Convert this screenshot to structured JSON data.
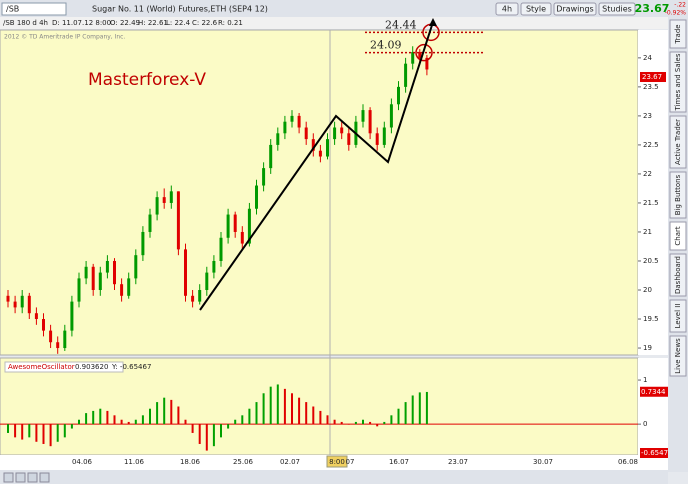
{
  "toolbar": {
    "symbol": "/SB",
    "description": "Sugar No. 11 (World) Futures,ETH (SEP4 12)",
    "buttons": [
      "4h",
      "Style",
      "Drawings",
      "Studies"
    ],
    "last": "23.67",
    "change": "-.22",
    "change_pct": "-0.92%"
  },
  "infobar": {
    "spec": "/SB 180 d 4h",
    "date": "D: 11.07.12 8:00",
    "open": "O: 22.49",
    "high": "H: 22.61",
    "low": "L: 22.4",
    "close": "C: 22.6",
    "range": "R: 0.21"
  },
  "side_tabs": [
    "Trade",
    "Times and Sales",
    "Active Trader",
    "Big Buttons",
    "Chart",
    "Dashboard",
    "Level II",
    "Live News"
  ],
  "chart_data": [
    {
      "type": "candlestick",
      "watermark": "2012 © TD Ameritrade IP Company, Inc.",
      "annotation": "Masterforex-V",
      "levels": [
        24.44,
        24.09
      ],
      "last_price": 23.67,
      "ylim": [
        18.88,
        24.48
      ],
      "yticks": [
        19,
        19.5,
        20,
        20.5,
        21,
        21.5,
        22,
        22.5,
        23,
        23.5,
        24
      ],
      "up_color": "#009900",
      "down_color": "#e00000",
      "candles": [
        [
          19.9,
          20.0,
          19.7,
          19.8
        ],
        [
          19.8,
          19.9,
          19.6,
          19.7
        ],
        [
          19.7,
          20.0,
          19.6,
          19.9
        ],
        [
          19.9,
          19.95,
          19.5,
          19.6
        ],
        [
          19.6,
          19.7,
          19.4,
          19.5
        ],
        [
          19.5,
          19.6,
          19.2,
          19.3
        ],
        [
          19.3,
          19.4,
          19.0,
          19.1
        ],
        [
          19.1,
          19.2,
          18.9,
          19.0
        ],
        [
          19.0,
          19.4,
          18.95,
          19.3
        ],
        [
          19.3,
          19.9,
          19.2,
          19.8
        ],
        [
          19.8,
          20.3,
          19.7,
          20.2
        ],
        [
          20.2,
          20.5,
          20.1,
          20.4
        ],
        [
          20.4,
          20.45,
          19.9,
          20.0
        ],
        [
          20.0,
          20.4,
          19.9,
          20.3
        ],
        [
          20.3,
          20.6,
          20.2,
          20.5
        ],
        [
          20.5,
          20.55,
          20.0,
          20.1
        ],
        [
          20.1,
          20.2,
          19.8,
          19.9
        ],
        [
          19.9,
          20.3,
          19.85,
          20.2
        ],
        [
          20.2,
          20.7,
          20.1,
          20.6
        ],
        [
          20.6,
          21.1,
          20.5,
          21.0
        ],
        [
          21.0,
          21.4,
          20.9,
          21.3
        ],
        [
          21.3,
          21.7,
          21.2,
          21.6
        ],
        [
          21.6,
          21.75,
          21.4,
          21.5
        ],
        [
          21.5,
          21.8,
          21.4,
          21.7
        ],
        [
          21.7,
          21.7,
          20.6,
          20.7
        ],
        [
          20.7,
          20.8,
          19.8,
          19.9
        ],
        [
          19.9,
          20.0,
          19.7,
          19.8
        ],
        [
          19.8,
          20.1,
          19.75,
          20.0
        ],
        [
          20.0,
          20.4,
          19.9,
          20.3
        ],
        [
          20.3,
          20.6,
          20.2,
          20.5
        ],
        [
          20.5,
          21.0,
          20.4,
          20.9
        ],
        [
          20.9,
          21.4,
          20.8,
          21.3
        ],
        [
          21.3,
          21.35,
          20.9,
          21.0
        ],
        [
          21.0,
          21.1,
          20.7,
          20.8
        ],
        [
          20.8,
          21.5,
          20.75,
          21.4
        ],
        [
          21.4,
          21.9,
          21.3,
          21.8
        ],
        [
          21.8,
          22.2,
          21.7,
          22.1
        ],
        [
          22.1,
          22.6,
          22.0,
          22.5
        ],
        [
          22.5,
          22.8,
          22.4,
          22.7
        ],
        [
          22.7,
          23.0,
          22.6,
          22.9
        ],
        [
          22.9,
          23.1,
          22.8,
          23.0
        ],
        [
          23.0,
          23.05,
          22.7,
          22.8
        ],
        [
          22.8,
          22.9,
          22.5,
          22.6
        ],
        [
          22.6,
          22.7,
          22.3,
          22.4
        ],
        [
          22.4,
          22.5,
          22.2,
          22.3
        ],
        [
          22.3,
          22.7,
          22.25,
          22.6
        ],
        [
          22.6,
          22.9,
          22.5,
          22.8
        ],
        [
          22.8,
          22.9,
          22.6,
          22.7
        ],
        [
          22.7,
          22.8,
          22.4,
          22.5
        ],
        [
          22.5,
          23.0,
          22.45,
          22.9
        ],
        [
          22.9,
          23.2,
          22.8,
          23.1
        ],
        [
          23.1,
          23.15,
          22.6,
          22.7
        ],
        [
          22.7,
          22.8,
          22.4,
          22.5
        ],
        [
          22.5,
          22.9,
          22.45,
          22.8
        ],
        [
          22.8,
          23.3,
          22.7,
          23.2
        ],
        [
          23.2,
          23.6,
          23.1,
          23.5
        ],
        [
          23.5,
          24.0,
          23.4,
          23.9
        ],
        [
          23.9,
          24.2,
          23.8,
          24.1
        ],
        [
          24.1,
          24.15,
          23.9,
          24.0
        ],
        [
          24.0,
          24.05,
          23.7,
          23.8
        ]
      ],
      "x_labels": [
        "04.06",
        "11.06",
        "18.06",
        "25.06",
        "02.07",
        "8:00",
        "07",
        "16.07",
        "23.07",
        "30.07",
        "06.08"
      ]
    },
    {
      "type": "histogram",
      "title": "AwesomeOscillator",
      "readout": [
        "0.90362",
        "0",
        "Y: -0.65467"
      ],
      "ylim": [
        -0.7,
        1.5
      ],
      "yticks": [
        1,
        0
      ],
      "markers": [
        0.7344,
        -0.6547
      ],
      "up_color": "#00a000",
      "down_color": "#e00000",
      "values": [
        -0.2,
        -0.3,
        -0.35,
        -0.3,
        -0.4,
        -0.45,
        -0.5,
        -0.4,
        -0.3,
        -0.1,
        0.1,
        0.25,
        0.3,
        0.35,
        0.3,
        0.2,
        0.1,
        0.05,
        0.1,
        0.2,
        0.35,
        0.5,
        0.6,
        0.55,
        0.4,
        0.1,
        -0.2,
        -0.45,
        -0.6,
        -0.5,
        -0.3,
        -0.1,
        0.1,
        0.2,
        0.35,
        0.5,
        0.7,
        0.85,
        0.9,
        0.8,
        0.7,
        0.6,
        0.5,
        0.4,
        0.3,
        0.2,
        0.1,
        0.05,
        0.0,
        0.05,
        0.1,
        0.05,
        -0.05,
        0.05,
        0.2,
        0.35,
        0.5,
        0.65,
        0.72,
        0.73
      ]
    }
  ]
}
